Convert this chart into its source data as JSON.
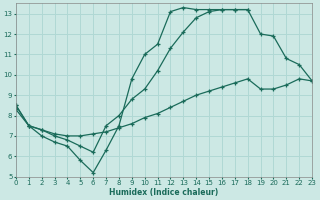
{
  "xlabel": "Humidex (Indice chaleur)",
  "xlim": [
    0,
    23
  ],
  "ylim": [
    5,
    13.5
  ],
  "yticks": [
    5,
    6,
    7,
    8,
    9,
    10,
    11,
    12,
    13
  ],
  "xticks": [
    0,
    1,
    2,
    3,
    4,
    5,
    6,
    7,
    8,
    9,
    10,
    11,
    12,
    13,
    14,
    15,
    16,
    17,
    18,
    19,
    20,
    21,
    22,
    23
  ],
  "bg_color": "#cce8e4",
  "grid_color": "#b0d8d4",
  "line_color": "#1a6b5a",
  "curve1_x": [
    0,
    1,
    2,
    3,
    4,
    5,
    6,
    7,
    8,
    9,
    10,
    11,
    12,
    13,
    14,
    15,
    16,
    17,
    18
  ],
  "curve1_y": [
    8.5,
    7.5,
    7.0,
    6.7,
    6.5,
    5.8,
    5.2,
    6.3,
    7.5,
    9.8,
    11.0,
    11.5,
    13.1,
    13.3,
    13.2,
    13.2,
    13.2,
    13.2,
    13.2
  ],
  "curve2_x": [
    0,
    1,
    2,
    3,
    4,
    5,
    6,
    7,
    8,
    9,
    10,
    11,
    12,
    13,
    14,
    15,
    16,
    17,
    18,
    19,
    20,
    21,
    22,
    23
  ],
  "curve2_y": [
    8.5,
    7.5,
    7.3,
    7.0,
    6.8,
    6.5,
    6.2,
    7.5,
    8.0,
    8.8,
    9.3,
    10.2,
    11.3,
    12.1,
    12.8,
    13.1,
    13.2,
    13.2,
    13.2,
    12.0,
    11.9,
    10.8,
    10.5,
    9.7
  ],
  "curve3_x": [
    0,
    1,
    2,
    3,
    4,
    5,
    6,
    7,
    8,
    9,
    10,
    11,
    12,
    13,
    14,
    15,
    16,
    17,
    18,
    19,
    20,
    21,
    22,
    23
  ],
  "curve3_y": [
    8.3,
    7.5,
    7.3,
    7.1,
    7.0,
    7.0,
    7.1,
    7.2,
    7.4,
    7.6,
    7.9,
    8.1,
    8.4,
    8.7,
    9.0,
    9.2,
    9.4,
    9.6,
    9.8,
    9.3,
    9.3,
    9.5,
    9.8,
    9.7
  ]
}
